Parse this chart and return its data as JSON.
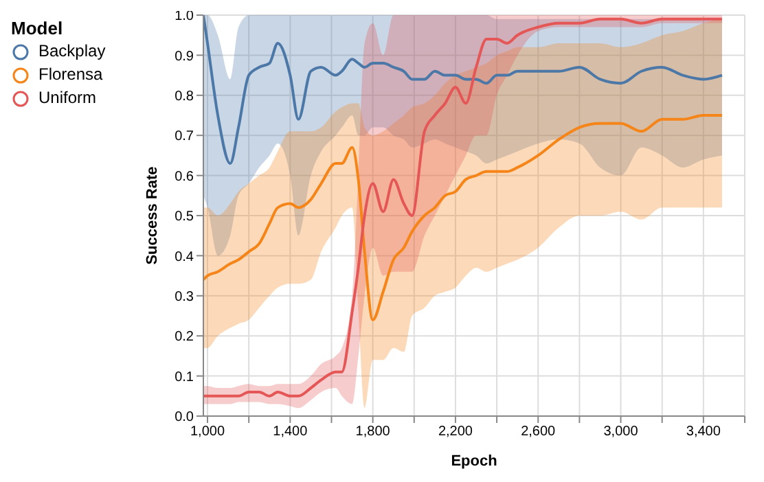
{
  "chart_data": {
    "type": "line",
    "xlabel": "Epoch",
    "ylabel": "Success Rate",
    "legend_title": "Model",
    "legend": "top left",
    "grid": true,
    "xlim": [
      980,
      3600
    ],
    "xticks": [
      {
        "value": 1000,
        "label": "1,000"
      },
      {
        "value": 1200,
        "label": null
      },
      {
        "value": 1400,
        "label": "1,400"
      },
      {
        "value": 1600,
        "label": null
      },
      {
        "value": 1800,
        "label": "1,800"
      },
      {
        "value": 2000,
        "label": null
      },
      {
        "value": 2200,
        "label": "2,200"
      },
      {
        "value": 2400,
        "label": null
      },
      {
        "value": 2600,
        "label": "2,600"
      },
      {
        "value": 2800,
        "label": null
      },
      {
        "value": 3000,
        "label": "3,000"
      },
      {
        "value": 3200,
        "label": null
      },
      {
        "value": 3400,
        "label": "3,400"
      },
      {
        "value": 3600,
        "label": null
      }
    ],
    "ylim": [
      0,
      1
    ],
    "yticks": [
      {
        "value": 0,
        "label": "0.0"
      },
      0.1,
      0.2,
      0.3,
      0.4,
      0.5,
      0.6,
      0.7,
      0.8,
      0.9,
      {
        "value": 1,
        "label": "1.0"
      }
    ],
    "x": [
      980,
      1000,
      1050,
      1110,
      1150,
      1200,
      1250,
      1300,
      1340,
      1400,
      1440,
      1500,
      1550,
      1620,
      1650,
      1700,
      1730,
      1760,
      1800,
      1850,
      1900,
      1950,
      1990,
      2050,
      2100,
      2150,
      2200,
      2250,
      2300,
      2350,
      2400,
      2450,
      2500,
      2600,
      2700,
      2800,
      2900,
      3000,
      3100,
      3200,
      3300,
      3400,
      3490
    ],
    "series": [
      {
        "name": "Backplay",
        "color": "#4c78a8",
        "values": [
          1.0,
          0.93,
          0.75,
          0.63,
          0.72,
          0.85,
          0.87,
          0.88,
          0.93,
          0.85,
          0.74,
          0.86,
          0.87,
          0.85,
          0.86,
          0.89,
          0.88,
          0.87,
          0.88,
          0.88,
          0.87,
          0.86,
          0.84,
          0.84,
          0.86,
          0.85,
          0.85,
          0.84,
          0.84,
          0.83,
          0.85,
          0.85,
          0.86,
          0.86,
          0.86,
          0.87,
          0.84,
          0.83,
          0.86,
          0.87,
          0.85,
          0.84,
          0.85
        ],
        "lower": [
          0.55,
          0.52,
          0.4,
          0.45,
          0.55,
          0.58,
          0.62,
          0.65,
          0.68,
          0.6,
          0.45,
          0.6,
          0.66,
          0.7,
          0.72,
          0.75,
          0.7,
          0.7,
          0.72,
          0.72,
          0.7,
          0.69,
          0.67,
          0.68,
          0.69,
          0.68,
          0.67,
          0.66,
          0.65,
          0.63,
          0.64,
          0.65,
          0.66,
          0.68,
          0.69,
          0.68,
          0.62,
          0.6,
          0.67,
          0.65,
          0.62,
          0.64,
          0.65
        ],
        "upper": [
          1,
          1,
          0.95,
          0.84,
          0.97,
          1,
          1,
          1,
          1,
          1,
          1,
          1,
          1,
          1,
          1,
          1,
          1,
          1,
          1,
          1,
          1,
          1,
          1,
          1,
          1,
          1,
          1,
          1,
          1,
          1,
          0.99,
          0.99,
          0.99,
          0.99,
          0.99,
          0.99,
          0.99,
          0.99,
          0.99,
          0.99,
          0.99,
          0.99,
          0.99
        ]
      },
      {
        "name": "Florensa",
        "color": "#f58518",
        "values": [
          0.34,
          0.35,
          0.36,
          0.38,
          0.39,
          0.41,
          0.43,
          0.48,
          0.52,
          0.53,
          0.52,
          0.54,
          0.58,
          0.63,
          0.63,
          0.67,
          0.59,
          0.41,
          0.24,
          0.31,
          0.39,
          0.42,
          0.46,
          0.5,
          0.52,
          0.55,
          0.56,
          0.59,
          0.6,
          0.61,
          0.61,
          0.61,
          0.62,
          0.65,
          0.69,
          0.72,
          0.73,
          0.73,
          0.71,
          0.74,
          0.74,
          0.75,
          0.75
        ],
        "lower": [
          0.17,
          0.17,
          0.2,
          0.22,
          0.23,
          0.24,
          0.27,
          0.3,
          0.32,
          0.33,
          0.33,
          0.34,
          0.41,
          0.47,
          0.5,
          0.52,
          0.26,
          0.02,
          0.14,
          0.14,
          0.17,
          0.16,
          0.25,
          0.27,
          0.3,
          0.31,
          0.32,
          0.35,
          0.37,
          0.36,
          0.37,
          0.38,
          0.39,
          0.42,
          0.47,
          0.5,
          0.5,
          0.51,
          0.49,
          0.52,
          0.52,
          0.52,
          0.52
        ],
        "upper": [
          0.52,
          0.52,
          0.5,
          0.53,
          0.56,
          0.58,
          0.6,
          0.62,
          0.66,
          0.71,
          0.71,
          0.71,
          0.72,
          0.76,
          0.77,
          0.78,
          0.78,
          0.72,
          0.7,
          0.71,
          0.73,
          0.75,
          0.77,
          0.78,
          0.8,
          0.83,
          0.85,
          0.86,
          0.87,
          0.88,
          0.9,
          0.91,
          0.92,
          0.92,
          0.93,
          0.93,
          0.93,
          0.92,
          0.93,
          0.95,
          0.96,
          0.98,
          0.99
        ]
      },
      {
        "name": "Uniform",
        "color": "#e45756",
        "values": [
          0.05,
          0.05,
          0.05,
          0.05,
          0.05,
          0.06,
          0.06,
          0.05,
          0.06,
          0.05,
          0.05,
          0.07,
          0.09,
          0.11,
          0.11,
          0.26,
          0.37,
          0.5,
          0.58,
          0.51,
          0.59,
          0.53,
          0.5,
          0.71,
          0.75,
          0.78,
          0.82,
          0.78,
          0.87,
          0.94,
          0.94,
          0.93,
          0.95,
          0.97,
          0.98,
          0.98,
          0.99,
          0.99,
          0.98,
          0.99,
          0.99,
          0.99,
          0.99
        ],
        "lower": [
          0.03,
          0.03,
          0.03,
          0.03,
          0.035,
          0.035,
          0.035,
          0.03,
          0.03,
          0.025,
          0.02,
          0.04,
          0.06,
          0.07,
          0.05,
          0.03,
          0.15,
          0.3,
          0.42,
          0.35,
          0.36,
          0.36,
          0.36,
          0.45,
          0.5,
          0.55,
          0.6,
          0.65,
          0.7,
          0.7,
          0.8,
          0.85,
          0.9,
          0.96,
          0.97,
          0.97,
          0.97,
          0.97,
          0.97,
          0.98,
          0.98,
          0.98,
          0.98
        ],
        "upper": [
          0.075,
          0.075,
          0.07,
          0.07,
          0.075,
          0.08,
          0.075,
          0.075,
          0.08,
          0.08,
          0.08,
          0.1,
          0.13,
          0.15,
          0.17,
          0.3,
          0.6,
          0.93,
          0.98,
          0.9,
          1,
          1,
          1,
          1,
          1,
          1,
          1,
          1,
          1,
          1,
          1,
          1,
          1,
          1,
          1,
          1,
          1,
          1,
          1,
          1,
          1,
          1,
          1
        ]
      }
    ]
  }
}
